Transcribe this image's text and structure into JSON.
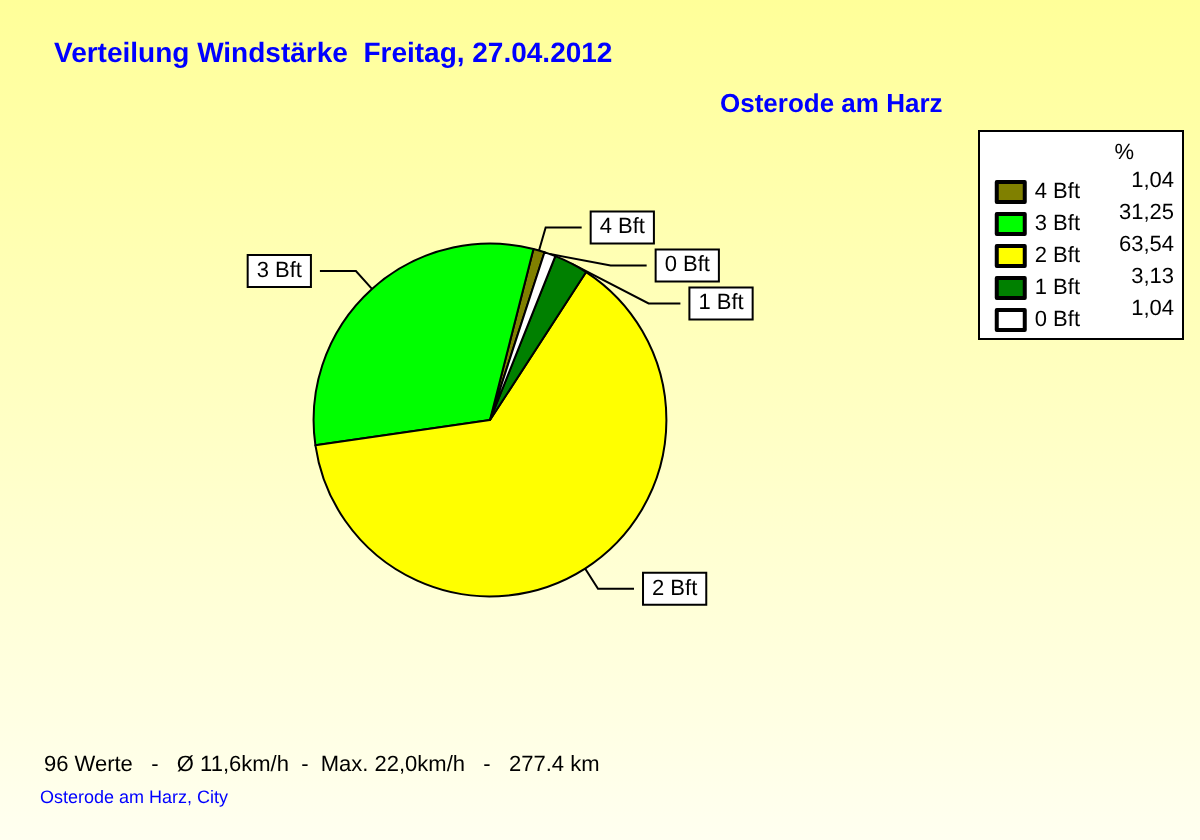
{
  "chart_data": {
    "type": "pie",
    "title": "Verteilung Windstärke  Freitag, 27.04.2012",
    "subtitle": "Osterode am Harz",
    "legend_title": "%",
    "legend": "top right",
    "categories": [
      "4 Bft",
      "3 Bft",
      "2 Bft",
      "1 Bft",
      "0 Bft"
    ],
    "values": [
      1.04,
      31.25,
      63.54,
      3.13,
      1.04
    ],
    "value_labels": [
      "1,04",
      "31,25",
      "63,54",
      "3,13",
      "1,04"
    ],
    "colors": [
      "#808000",
      "#00ff00",
      "#ffff00",
      "#008000",
      "#ffffff"
    ],
    "annotations": [
      "96 Werte   -   Ø 11,6km/h  -  Max. 22,0km/h   -   277.4 km",
      "Osterode am Harz, City"
    ]
  }
}
